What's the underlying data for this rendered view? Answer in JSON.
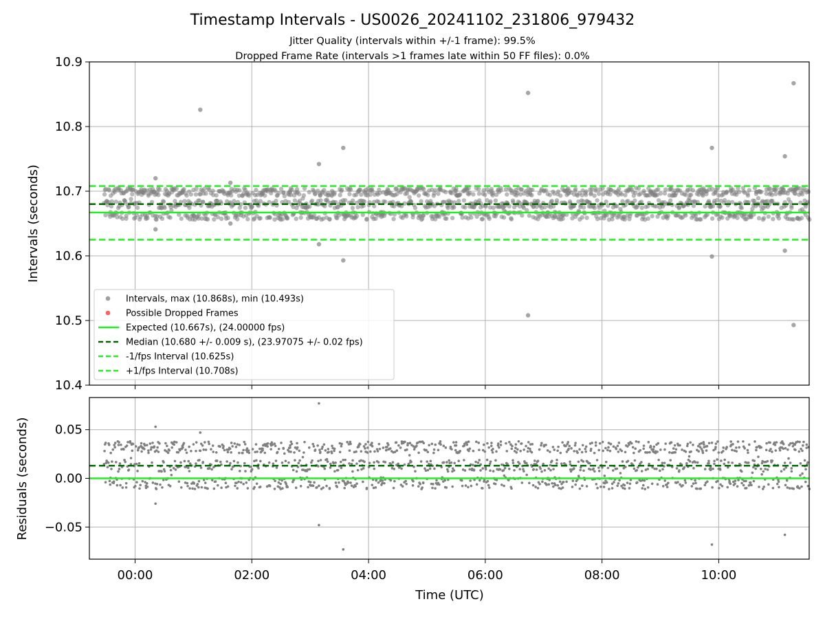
{
  "title": "Timestamp Intervals - US0026_20241102_231806_979432",
  "subtitle_1": "Jitter Quality (intervals within +/-1 frame): 99.5%",
  "subtitle_2": "Dropped Frame Rate (intervals >1 frames late within 50 FF files): 0.0%",
  "colors": {
    "points": "#808080",
    "dropped": "#ff4040",
    "expected": "#22ee22",
    "median": "#006400",
    "band": "#22ee22",
    "grid": "#b0b0b0"
  },
  "chart_data": [
    {
      "type": "scatter",
      "name": "intervals-panel",
      "ylabel": "Intervals (seconds)",
      "xlabel": "",
      "xlim": [
        "-00:47",
        "11:33"
      ],
      "ylim": [
        10.4,
        10.9
      ],
      "y_ticks": [
        "10.4",
        "10.5",
        "10.6",
        "10.7",
        "10.8",
        "10.9"
      ],
      "x_ticks": [
        "00:00",
        "02:00",
        "04:00",
        "06:00",
        "08:00",
        "10:00"
      ],
      "grid": true,
      "legend_position": "lower-left",
      "legend": [
        {
          "label": "Intervals, max (10.868s), min (10.493s)",
          "marker": "dot",
          "color": "#a0a0a0"
        },
        {
          "label": "Possible Dropped Frames",
          "marker": "dot",
          "color": "#ff6060"
        },
        {
          "label": "Expected (10.667s), (24.00000 fps)",
          "marker": "solid",
          "color": "#22ee22"
        },
        {
          "label": "Median (10.680 +/- 0.009 s), (23.97075 +/- 0.02 fps)",
          "marker": "dashed",
          "color": "#006400"
        },
        {
          "label": "-1/fps Interval (10.625s)",
          "marker": "dashed",
          "color": "#22ee22"
        },
        {
          "label": "+1/fps Interval (10.708s)",
          "marker": "dashed",
          "color": "#22ee22"
        }
      ],
      "reference_lines": [
        {
          "name": "expected",
          "y": 10.667,
          "style": "solid",
          "color": "#22ee22"
        },
        {
          "name": "median",
          "y": 10.68,
          "style": "dashed",
          "color": "#006400"
        },
        {
          "name": "minus-1-fps",
          "y": 10.625,
          "style": "dashed",
          "color": "#22ee22"
        },
        {
          "name": "plus-1-fps",
          "y": 10.708,
          "style": "dashed",
          "color": "#22ee22"
        }
      ],
      "series": [
        {
          "name": "Intervals, max (10.868s), min (10.493s)",
          "x_range": [
            "-00:32",
            "11:33"
          ],
          "count_approx": 4000,
          "bulk_y_range": [
            10.655,
            10.705
          ],
          "outliers": [
            {
              "x": "01:07",
              "y": 10.826
            },
            {
              "x": "03:09",
              "y": 10.742
            },
            {
              "x": "03:09",
              "y": 10.618
            },
            {
              "x": "03:34",
              "y": 10.767
            },
            {
              "x": "03:34",
              "y": 10.593
            },
            {
              "x": "06:44",
              "y": 10.852
            },
            {
              "x": "06:44",
              "y": 10.508
            },
            {
              "x": "09:53",
              "y": 10.767
            },
            {
              "x": "09:53",
              "y": 10.599
            },
            {
              "x": "11:08",
              "y": 10.754
            },
            {
              "x": "11:08",
              "y": 10.608
            },
            {
              "x": "11:17",
              "y": 10.867
            },
            {
              "x": "11:17",
              "y": 10.493
            },
            {
              "x": "00:21",
              "y": 10.72
            },
            {
              "x": "00:21",
              "y": 10.641
            },
            {
              "x": "01:38",
              "y": 10.713
            },
            {
              "x": "01:38",
              "y": 10.65
            }
          ]
        },
        {
          "name": "Possible Dropped Frames",
          "points": []
        }
      ]
    },
    {
      "type": "scatter",
      "name": "residuals-panel",
      "ylabel": "Residuals (seconds)",
      "xlabel": "Time (UTC)",
      "xlim": [
        "-00:47",
        "11:33"
      ],
      "ylim": [
        -0.083,
        0.083
      ],
      "y_ticks": [
        "−0.05",
        "0.00",
        "0.05"
      ],
      "x_ticks": [
        "00:00",
        "02:00",
        "04:00",
        "06:00",
        "08:00",
        "10:00"
      ],
      "grid": true,
      "reference_lines": [
        {
          "name": "zero",
          "y": 0.0,
          "style": "solid",
          "color": "#22ee22"
        },
        {
          "name": "median-offset",
          "y": 0.013,
          "style": "dashed",
          "color": "#006400"
        }
      ],
      "series": [
        {
          "name": "residuals",
          "x_range": [
            "-00:32",
            "11:33"
          ],
          "count_approx": 4000,
          "bulk_y_range": [
            -0.01,
            0.037
          ],
          "outliers": [
            {
              "x": "01:07",
              "y": 0.047
            },
            {
              "x": "03:09",
              "y": 0.077
            },
            {
              "x": "03:09",
              "y": -0.048
            },
            {
              "x": "03:34",
              "y": -0.073
            },
            {
              "x": "09:53",
              "y": -0.068
            },
            {
              "x": "11:08",
              "y": -0.058
            },
            {
              "x": "00:21",
              "y": 0.053
            },
            {
              "x": "00:21",
              "y": -0.026
            }
          ]
        }
      ]
    }
  ]
}
